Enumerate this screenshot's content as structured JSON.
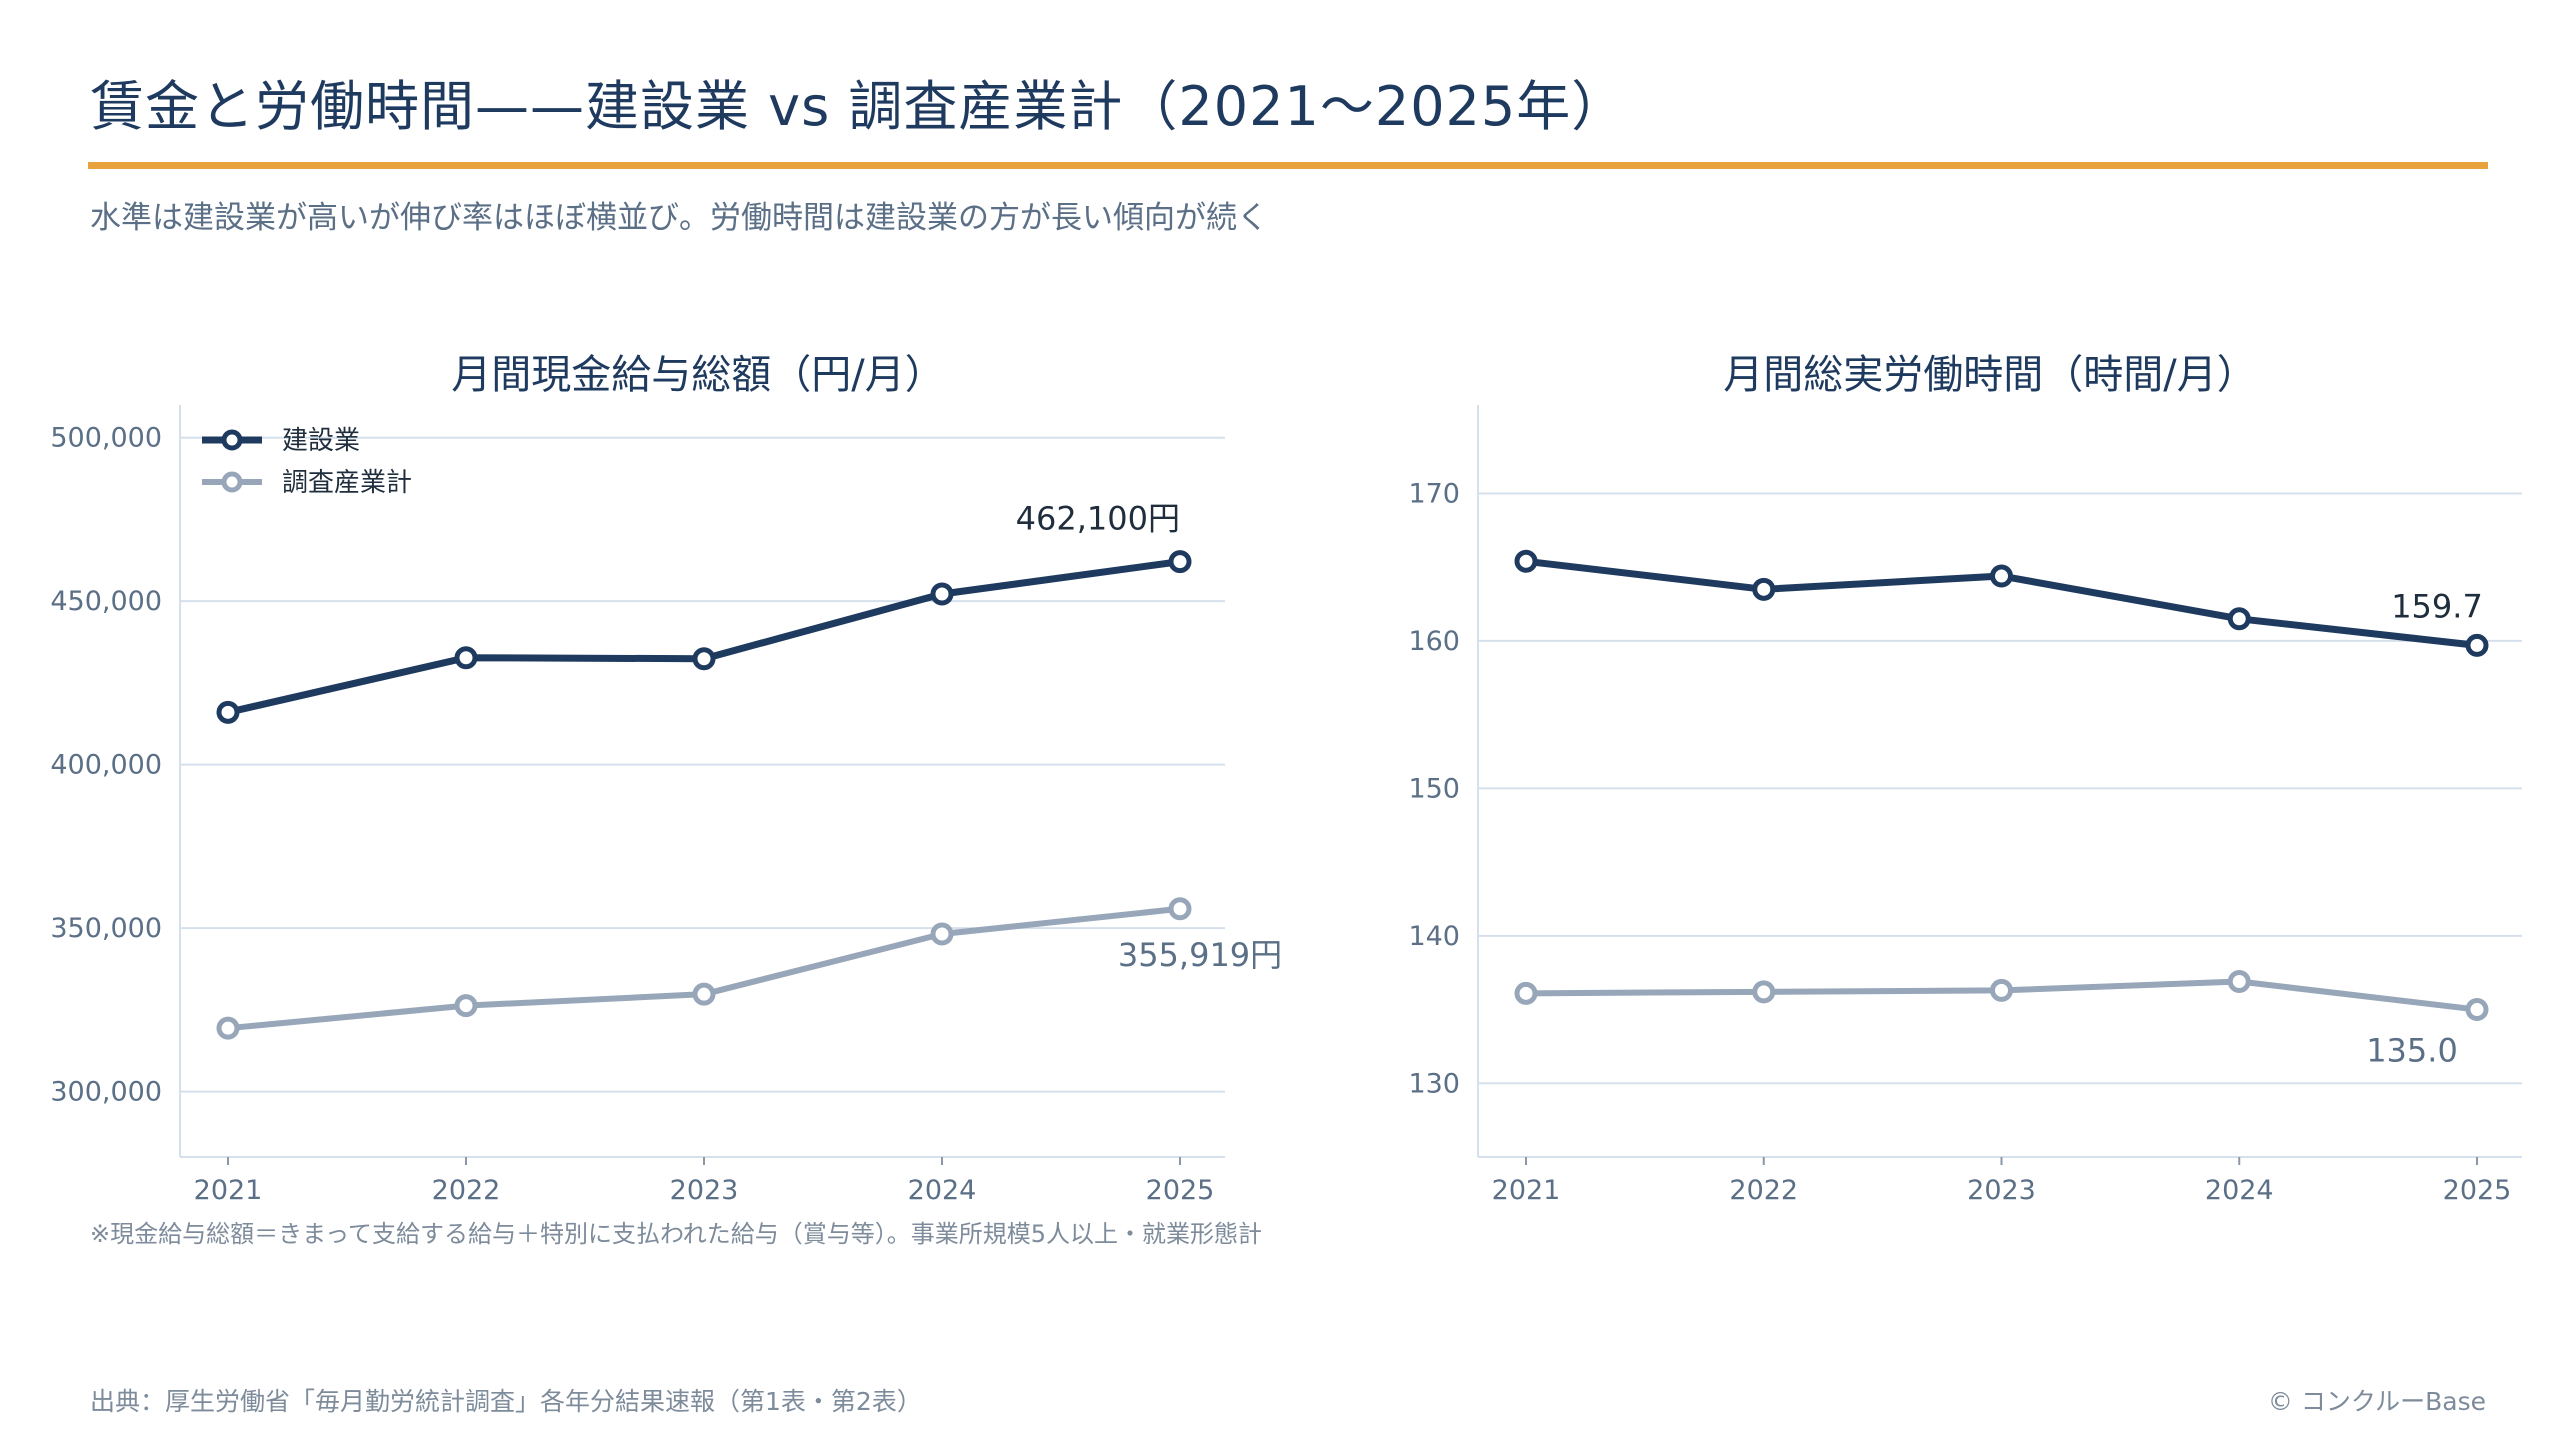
{
  "header": {
    "title": "賃金と労働時間——建設業 vs 調査産業計（2021〜2025年）",
    "subtitle": "水準は建設業が高いが伸び率はほぼ横並び。労働時間は建設業の方が長い傾向が続く"
  },
  "colors": {
    "accent_rule": "#e8a33d",
    "series_primary": "#1f3a5f",
    "series_secondary": "#97a6b8",
    "grid": "#d6e0ec"
  },
  "chart_data": [
    {
      "type": "line",
      "title": "月間現金給与総額（円/月）",
      "x": [
        "2021",
        "2022",
        "2023",
        "2024",
        "2025"
      ],
      "series": [
        {
          "name": "建設業",
          "values": [
            416000,
            432700,
            432400,
            452200,
            462100
          ]
        },
        {
          "name": "調査産業計",
          "values": [
            319400,
            326300,
            329800,
            348200,
            355919
          ]
        }
      ],
      "ylim": [
        280000,
        510000
      ],
      "yticks": [
        300000,
        350000,
        400000,
        450000,
        500000
      ],
      "ytick_labels": [
        "300,000",
        "350,000",
        "400,000",
        "450,000",
        "500,000"
      ],
      "grid": true,
      "legend": "top-left",
      "annotations": [
        "462,100円",
        "355,919円"
      ],
      "note": "※現金給与総額＝きまって支給する給与＋特別に支払われた給与（賞与等）。事業所規模5人以上・就業形態計"
    },
    {
      "type": "line",
      "title": "月間総実労働時間（時間/月）",
      "x": [
        "2021",
        "2022",
        "2023",
        "2024",
        "2025"
      ],
      "series": [
        {
          "name": "建設業",
          "values": [
            165.4,
            163.5,
            164.4,
            161.5,
            159.7
          ]
        },
        {
          "name": "調査産業計",
          "values": [
            136.1,
            136.2,
            136.3,
            136.9,
            135.0
          ]
        }
      ],
      "ylim": [
        125,
        176
      ],
      "yticks": [
        130,
        140,
        150,
        160,
        170
      ],
      "ytick_labels": [
        "130",
        "140",
        "150",
        "160",
        "170"
      ],
      "grid": true,
      "annotations": [
        "159.7",
        "135.0"
      ]
    }
  ],
  "footer": {
    "source": "出典：厚生労働省「毎月勤労統計調査」各年分結果速報（第1表・第2表）",
    "copyright": "© コンクルーBase"
  }
}
